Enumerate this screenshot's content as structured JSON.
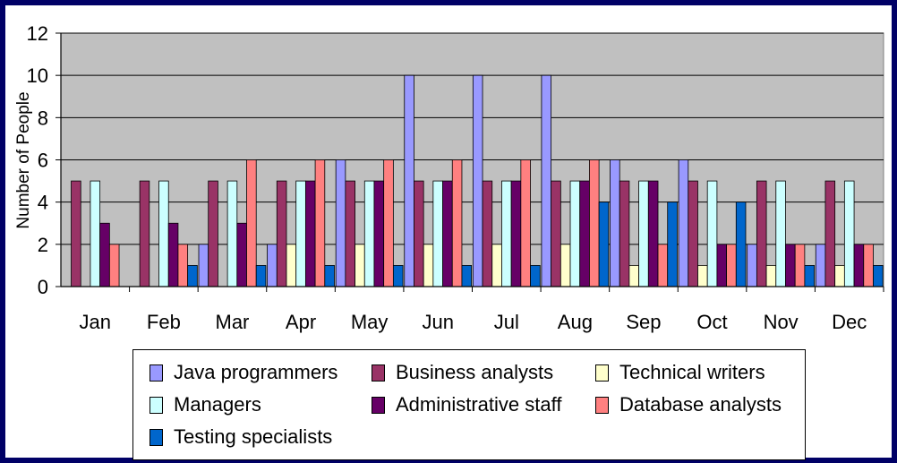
{
  "chart_data": {
    "type": "bar",
    "title": "",
    "xlabel": "",
    "ylabel": "Number of People",
    "ylim": [
      0,
      12
    ],
    "yticks": [
      "0",
      "2",
      "4",
      "6",
      "8",
      "10",
      "12"
    ],
    "grid": true,
    "legend_position": "bottom",
    "categories": [
      "Jan",
      "Feb",
      "Mar",
      "Apr",
      "May",
      "Jun",
      "Jul",
      "Aug",
      "Sep",
      "Oct",
      "Nov",
      "Dec"
    ],
    "series": [
      {
        "name": "Java programmers",
        "color": "#9999ff",
        "values": [
          0,
          0,
          2,
          2,
          6,
          10,
          10,
          10,
          6,
          6,
          2,
          2
        ]
      },
      {
        "name": "Business analysts",
        "color": "#993366",
        "values": [
          5,
          5,
          5,
          5,
          5,
          5,
          5,
          5,
          5,
          5,
          5,
          5
        ]
      },
      {
        "name": "Technical writers",
        "color": "#ffffcc",
        "values": [
          0,
          0,
          0,
          2,
          2,
          2,
          2,
          2,
          1,
          1,
          1,
          1
        ]
      },
      {
        "name": "Managers",
        "color": "#ccffff",
        "values": [
          5,
          5,
          5,
          5,
          5,
          5,
          5,
          5,
          5,
          5,
          5,
          5
        ]
      },
      {
        "name": "Administrative staff",
        "color": "#660066",
        "values": [
          3,
          3,
          3,
          5,
          5,
          5,
          5,
          5,
          5,
          2,
          2,
          2
        ]
      },
      {
        "name": "Database analysts",
        "color": "#ff8080",
        "values": [
          2,
          2,
          6,
          6,
          6,
          6,
          6,
          6,
          2,
          2,
          2,
          2
        ]
      },
      {
        "name": "Testing specialists",
        "color": "#0066cc",
        "values": [
          0,
          1,
          1,
          1,
          1,
          1,
          1,
          4,
          4,
          4,
          1,
          1
        ]
      }
    ]
  }
}
